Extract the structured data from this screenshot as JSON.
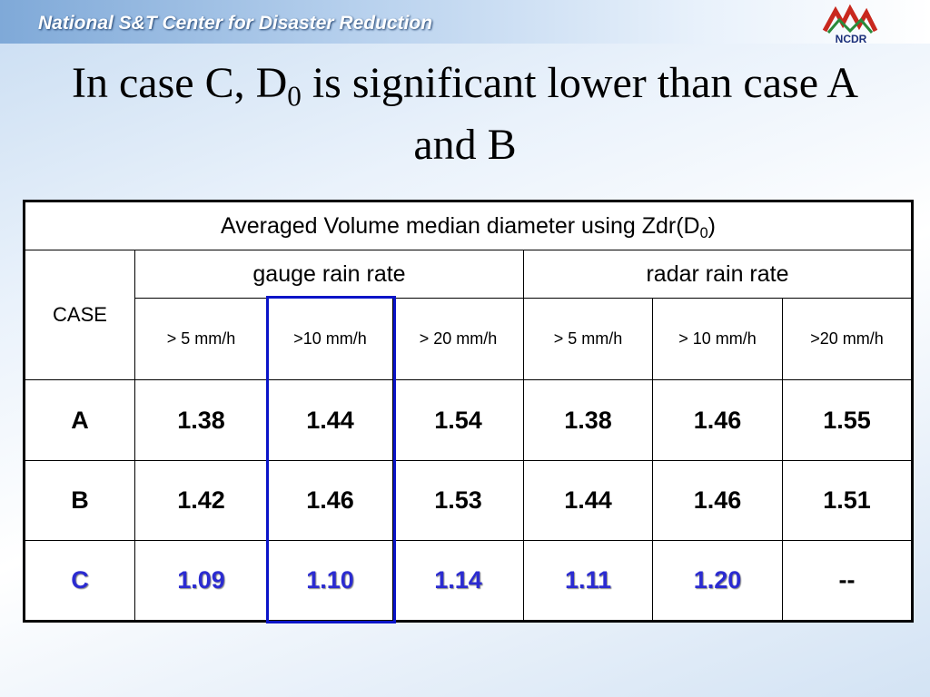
{
  "header": {
    "organization": "National S&T Center for Disaster Reduction",
    "logo": "NCDR"
  },
  "title": {
    "before": "In case C, D",
    "subscript": "0",
    "after": "is significant lower than case A and B"
  },
  "table": {
    "caption": {
      "before": "Averaged Volume median diameter using Zdr(D",
      "subscript": "0",
      "after": ")"
    },
    "case_header": "CASE",
    "groups": [
      "gauge rain rate",
      "radar rain rate"
    ],
    "subheaders": [
      "> 5 mm/h",
      ">10 mm/h",
      "> 20 mm/h",
      "> 5 mm/h",
      "> 10 mm/h",
      ">20 mm/h"
    ],
    "rows": [
      [
        "A",
        "1.38",
        "1.44",
        "1.54",
        "1.38",
        "1.46",
        "1.55"
      ],
      [
        "B",
        "1.42",
        "1.46",
        "1.53",
        "1.44",
        "1.46",
        "1.51"
      ],
      [
        "C",
        "1.09",
        "1.10",
        "1.14",
        "1.11",
        "1.20",
        "--"
      ]
    ]
  }
}
